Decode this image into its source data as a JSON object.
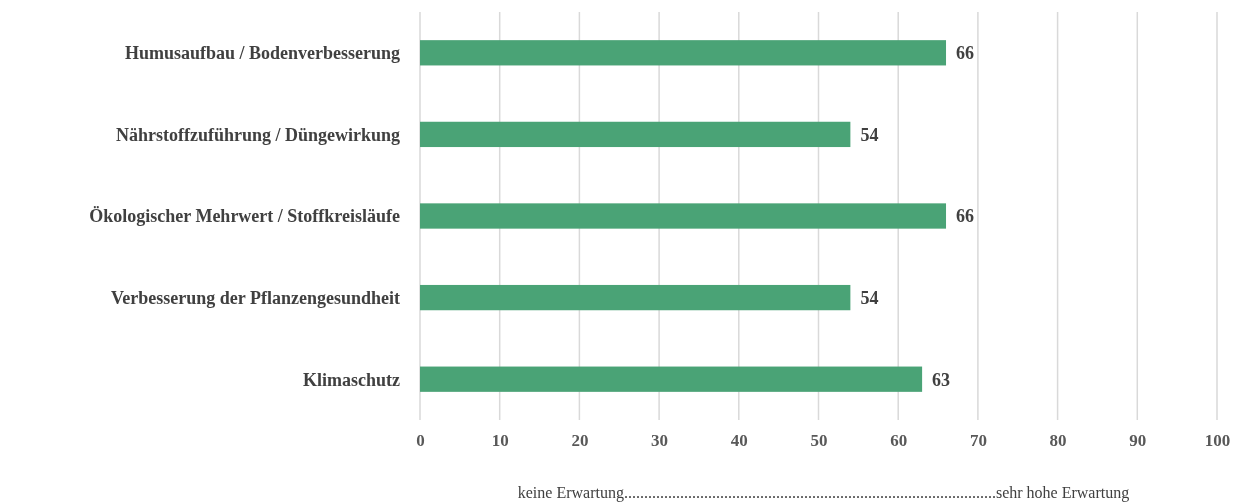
{
  "chart_data": {
    "type": "bar",
    "orientation": "horizontal",
    "categories": [
      "Humusaufbau / Bodenverbesserung",
      "Nährstoffzuführung / Düngewirkung",
      "Ökologischer Mehrwert / Stoffkreisläufe",
      "Verbesserung der Pflanzengesundheit",
      "Klimaschutz"
    ],
    "values": [
      66,
      54,
      66,
      54,
      63
    ],
    "color": "#4aa376",
    "data_labels": true,
    "xlim": [
      0,
      100
    ],
    "xticks": [
      0,
      10,
      20,
      30,
      40,
      50,
      60,
      70,
      80,
      90,
      100
    ],
    "grid": "x",
    "xlabel": "keine Erwartung.............................................................................................sehr hohe Erwartung"
  }
}
